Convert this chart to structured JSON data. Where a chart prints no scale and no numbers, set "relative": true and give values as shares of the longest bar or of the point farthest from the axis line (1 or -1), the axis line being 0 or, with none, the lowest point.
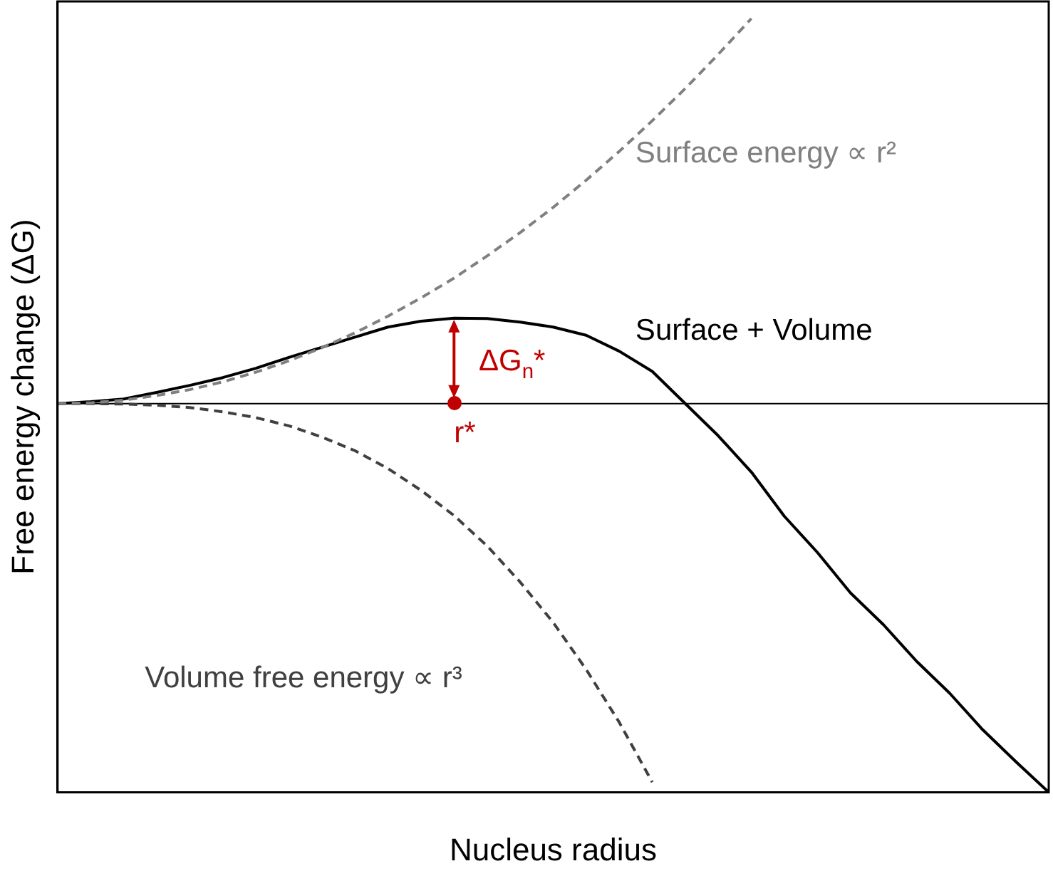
{
  "chart_data": {
    "type": "line",
    "relative": true,
    "xlabel": "Nucleus radius",
    "ylabel": "Free energy change (ΔG)",
    "categories": [
      null,
      null,
      null,
      null,
      null,
      null,
      null,
      null,
      null,
      null,
      null,
      null,
      null,
      null,
      null,
      null,
      null,
      null,
      null,
      null,
      null,
      null,
      null,
      null,
      null,
      null,
      null,
      null,
      null,
      null,
      null
    ],
    "series": [
      {
        "color": "#808080",
        "line_style": "dashed",
        "values": [
          0,
          0.002,
          0.009,
          0.021,
          0.036,
          0.056,
          0.081,
          0.11,
          0.144,
          0.182,
          0.225,
          0.272,
          0.323,
          0.38,
          0.44,
          0.505,
          0.575,
          0.649,
          0.728,
          0.811,
          0.899,
          0.991,
          null,
          null,
          null,
          null,
          null,
          null,
          null,
          null,
          null
        ]
      },
      {
        "color": "#404040",
        "line_style": "dashed",
        "values": [
          0,
          0,
          -0.001,
          -0.004,
          -0.01,
          -0.021,
          -0.036,
          -0.057,
          -0.086,
          -0.121,
          -0.167,
          -0.223,
          -0.288,
          -0.366,
          -0.459,
          -0.563,
          -0.684,
          -0.82,
          -0.974,
          null,
          null,
          null,
          null,
          null,
          null,
          null,
          null,
          null,
          null,
          null,
          null
        ]
      },
      {
        "color": "#000000",
        "line_style": "solid",
        "values": [
          0,
          0.005,
          0.012,
          0.029,
          0.047,
          0.067,
          0.091,
          0.119,
          0.145,
          0.171,
          0.197,
          0.212,
          0.22,
          0.219,
          0.21,
          0.197,
          0.176,
          0.135,
          0.083,
          0,
          -0.083,
          -0.176,
          -0.29,
          -0.383,
          -0.487,
          -0.569,
          -0.663,
          -0.745,
          -0.839,
          -0.921,
          -1
        ]
      }
    ],
    "annotations": [
      "Surface energy ∝ r²",
      "Volume free energy ∝ r³",
      "Surface + Volume",
      "ΔG$_{n}$*",
      "r*"
    ],
    "legend": false,
    "grid": false,
    "marker": "none"
  }
}
